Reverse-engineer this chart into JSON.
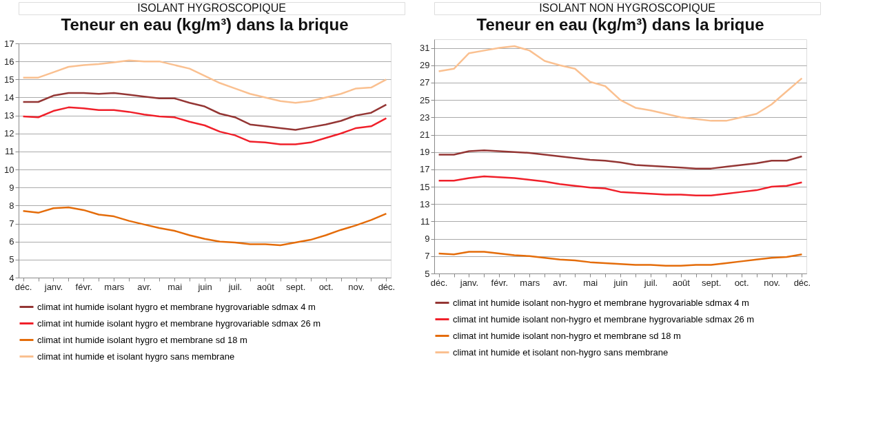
{
  "chart_data": [
    {
      "type": "line",
      "annotations": [
        "ISOLANT HYGROSCOPIQUE"
      ],
      "title": "Teneur en eau (kg/m³) dans la brique",
      "legend": "bottom",
      "grid": "y",
      "marker": "none",
      "line_style": "solid",
      "ylim": [
        4,
        17
      ],
      "yticks": [
        4,
        5,
        6,
        7,
        8,
        9,
        10,
        11,
        12,
        13,
        14,
        15,
        16,
        17
      ],
      "categories": [
        "déc.",
        null,
        "janv.",
        null,
        "févr.",
        null,
        "mars",
        null,
        "avr.",
        null,
        "mai",
        null,
        "juin",
        null,
        "juil.",
        null,
        "août",
        null,
        "sept.",
        null,
        "oct.",
        null,
        "nov.",
        null,
        "déc."
      ],
      "series": [
        {
          "name": "climat int humide isolant hygro et membrane hygrovariable sdmax 4 m",
          "color": "#943634",
          "values": [
            13.75,
            13.75,
            14.1,
            14.25,
            14.25,
            14.2,
            14.25,
            14.15,
            14.05,
            13.95,
            13.95,
            13.7,
            13.5,
            13.1,
            12.9,
            12.5,
            12.4,
            12.3,
            12.2,
            12.35,
            12.5,
            12.7,
            13.0,
            13.15,
            13.6
          ]
        },
        {
          "name": "climat int humide isolant hygro et membrane hygrovariable sdmax 26 m",
          "color": "#f0202a",
          "values": [
            12.95,
            12.9,
            13.25,
            13.45,
            13.4,
            13.3,
            13.3,
            13.2,
            13.05,
            12.95,
            12.9,
            12.65,
            12.45,
            12.1,
            11.9,
            11.55,
            11.5,
            11.4,
            11.4,
            11.5,
            11.75,
            12.0,
            12.3,
            12.4,
            12.85
          ]
        },
        {
          "name": "climat int humide isolant hygro et membrane sd 18 m",
          "color": "#e46c0a",
          "values": [
            7.7,
            7.6,
            7.85,
            7.9,
            7.75,
            7.5,
            7.4,
            7.15,
            6.95,
            6.75,
            6.6,
            6.35,
            6.15,
            6.0,
            5.95,
            5.85,
            5.85,
            5.8,
            5.95,
            6.1,
            6.35,
            6.65,
            6.9,
            7.2,
            7.55
          ]
        },
        {
          "name": "climat int humide et isolant hygro sans membrane",
          "color": "#fac090",
          "values": [
            15.1,
            15.1,
            15.4,
            15.7,
            15.8,
            15.85,
            15.95,
            16.05,
            16.0,
            16.0,
            15.8,
            15.6,
            15.2,
            14.8,
            14.5,
            14.2,
            14.0,
            13.8,
            13.7,
            13.8,
            14.0,
            14.2,
            14.5,
            14.55,
            15.0
          ]
        }
      ]
    },
    {
      "type": "line",
      "annotations": [
        "ISOLANT NON HYGROSCOPIQUE"
      ],
      "title": "Teneur en eau (kg/m³) dans la brique",
      "legend": "bottom",
      "grid": "y",
      "marker": "none",
      "line_style": "solid",
      "ylim": [
        5,
        32
      ],
      "yticks": [
        5,
        7,
        9,
        11,
        13,
        15,
        17,
        19,
        21,
        23,
        25,
        27,
        29,
        31
      ],
      "categories": [
        "déc.",
        null,
        "janv.",
        null,
        "févr.",
        null,
        "mars",
        null,
        "avr.",
        null,
        "mai",
        null,
        "juin",
        null,
        "juil.",
        null,
        "août",
        null,
        "sept.",
        null,
        "oct.",
        null,
        "nov.",
        null,
        "déc."
      ],
      "series": [
        {
          "name": "climat int humide isolant non-hygro et membrane hygrovariable sdmax 4 m",
          "color": "#943634",
          "values": [
            18.7,
            18.7,
            19.1,
            19.2,
            19.1,
            19.0,
            18.9,
            18.7,
            18.5,
            18.3,
            18.1,
            18.0,
            17.8,
            17.5,
            17.4,
            17.3,
            17.2,
            17.1,
            17.1,
            17.3,
            17.5,
            17.7,
            18.0,
            18.0,
            18.5
          ]
        },
        {
          "name": "climat int humide isolant non-hygro et membrane hygrovariable sdmax 26 m",
          "color": "#f0202a",
          "values": [
            15.7,
            15.7,
            16.0,
            16.2,
            16.1,
            16.0,
            15.8,
            15.6,
            15.3,
            15.1,
            14.9,
            14.8,
            14.4,
            14.3,
            14.2,
            14.1,
            14.1,
            14.0,
            14.0,
            14.2,
            14.4,
            14.6,
            15.0,
            15.1,
            15.5
          ]
        },
        {
          "name": "climat int humide isolant non-hygro et membrane sd 18 m",
          "color": "#e46c0a",
          "values": [
            7.3,
            7.2,
            7.5,
            7.5,
            7.3,
            7.1,
            7.0,
            6.8,
            6.6,
            6.5,
            6.3,
            6.2,
            6.1,
            6.0,
            6.0,
            5.9,
            5.9,
            6.0,
            6.0,
            6.2,
            6.4,
            6.6,
            6.8,
            6.9,
            7.2
          ]
        },
        {
          "name": "climat int humide et isolant non-hygro sans membrane",
          "color": "#fac090",
          "values": [
            28.3,
            28.6,
            30.4,
            30.7,
            31.0,
            31.2,
            30.7,
            29.5,
            29.0,
            28.6,
            27.1,
            26.6,
            25.0,
            24.1,
            23.8,
            23.4,
            23.0,
            22.8,
            22.6,
            22.6,
            23.0,
            23.4,
            24.5,
            26.0,
            27.5
          ]
        }
      ]
    }
  ]
}
